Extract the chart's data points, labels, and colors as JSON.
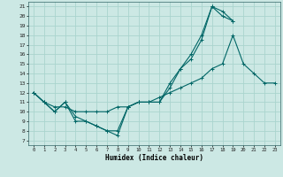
{
  "title": "",
  "xlabel": "Humidex (Indice chaleur)",
  "bg_color": "#cce8e4",
  "grid_color": "#b0d8d2",
  "line_color": "#006666",
  "xlim": [
    -0.5,
    23.5
  ],
  "ylim": [
    6.5,
    21.5
  ],
  "xticks": [
    0,
    1,
    2,
    3,
    4,
    5,
    6,
    7,
    8,
    9,
    10,
    11,
    12,
    13,
    14,
    15,
    16,
    17,
    18,
    19,
    20,
    21,
    22,
    23
  ],
  "yticks": [
    7,
    8,
    9,
    10,
    11,
    12,
    13,
    14,
    15,
    16,
    17,
    18,
    19,
    20,
    21
  ],
  "line1_x": [
    0,
    1,
    2,
    3,
    4,
    5,
    6,
    7,
    8,
    9,
    10,
    11,
    12,
    13,
    14,
    15,
    16,
    17,
    18,
    19
  ],
  "line1_y": [
    12,
    11,
    10,
    11,
    9,
    9,
    8.5,
    8,
    7.5,
    10.5,
    11,
    11,
    11,
    12.5,
    14.5,
    16,
    18,
    21,
    20,
    19.5
  ],
  "line2_x": [
    0,
    1,
    2,
    3,
    4,
    5,
    6,
    7,
    8,
    9,
    10,
    11,
    12,
    13,
    14,
    15,
    16,
    17,
    18,
    19
  ],
  "line2_y": [
    12,
    11,
    10,
    11,
    9.5,
    9,
    8.5,
    8.0,
    8,
    10.5,
    11,
    11,
    11,
    13,
    14.5,
    15.5,
    17.5,
    21,
    20.5,
    19.5
  ],
  "line3_x": [
    0,
    1,
    2,
    3,
    4,
    5,
    6,
    7,
    8,
    9,
    10,
    11,
    12,
    13,
    14,
    15,
    16,
    17,
    18,
    19,
    20,
    21,
    22,
    23
  ],
  "line3_y": [
    12,
    11,
    10.5,
    10.5,
    10,
    10,
    10,
    10,
    10.5,
    10.5,
    11,
    11,
    11.5,
    12,
    12.5,
    13,
    13.5,
    14.5,
    15,
    18,
    15,
    14,
    13,
    13
  ],
  "marker": "+",
  "markersize": 3,
  "linewidth": 0.8
}
